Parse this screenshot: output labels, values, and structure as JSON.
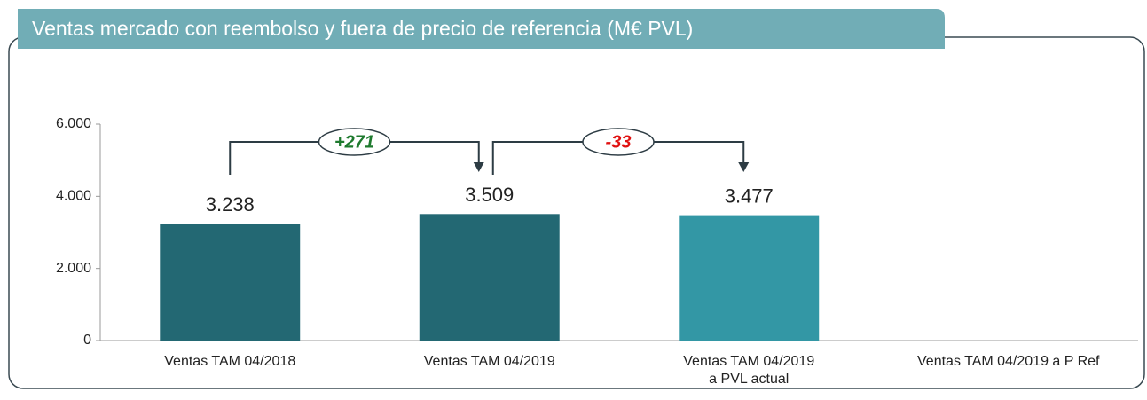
{
  "chart_data": {
    "type": "bar",
    "title": "Ventas mercado con reembolso y fuera de precio de referencia (M€ PVL)",
    "categories": [
      "Ventas TAM 04/2018",
      "Ventas TAM 04/2019",
      "Ventas TAM 04/2019\na PVL actual",
      "Ventas TAM 04/2019 a P Ref"
    ],
    "values": [
      3238,
      3509,
      3477,
      null
    ],
    "value_labels": [
      "3.238",
      "3.509",
      "3.477",
      null
    ],
    "colors": [
      "#236873",
      "#236873",
      "#3397a5",
      null
    ],
    "ylim": [
      0,
      6000
    ],
    "yticks": [
      0,
      {
        "value": 2000,
        "label": "2.000"
      },
      {
        "value": 4000,
        "label": "4.000"
      },
      {
        "value": 6000,
        "label": "6.000"
      }
    ],
    "annotations": [
      {
        "text": "+271",
        "color": "#1e7a2e"
      },
      {
        "text": "-33",
        "color": "#e01010"
      }
    ]
  }
}
